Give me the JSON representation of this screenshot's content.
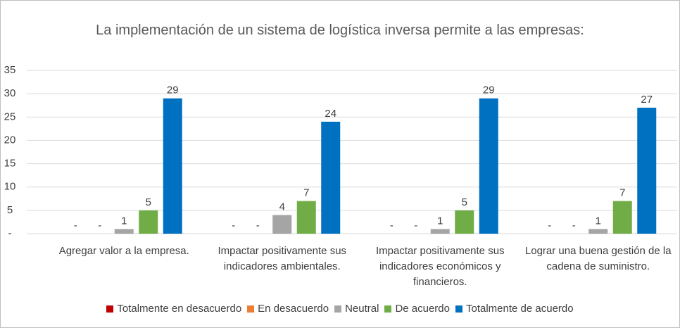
{
  "chart_data": {
    "type": "bar",
    "title": "La implementación de un sistema de logística inversa permite a las empresas:",
    "categories": [
      "Agregar valor a la empresa.",
      "Impactar positivamente sus indicadores ambientales.",
      "Impactar positivamente sus indicadores económicos y financieros.",
      "Lograr una buena gestión de la cadena de suministro."
    ],
    "series": [
      {
        "name": "Totalmente en desacuerdo",
        "color": "#c00000",
        "values": [
          0,
          0,
          0,
          0
        ],
        "value_labels": [
          "-",
          "-",
          "-",
          "-"
        ]
      },
      {
        "name": "En desacuerdo",
        "color": "#ed7d31",
        "values": [
          0,
          0,
          0,
          0
        ],
        "value_labels": [
          "-",
          "-",
          "-",
          "-"
        ]
      },
      {
        "name": "Neutral",
        "color": "#a5a5a5",
        "values": [
          1,
          4,
          1,
          1
        ]
      },
      {
        "name": "De acuerdo",
        "color": "#70ad47",
        "values": [
          5,
          7,
          5,
          7
        ]
      },
      {
        "name": "Totalmente de acuerdo",
        "color": "#0070c0",
        "values": [
          29,
          24,
          29,
          27
        ]
      }
    ],
    "ylim": [
      0,
      35
    ],
    "yticks": [
      {
        "value": 0,
        "label": "-"
      },
      5,
      10,
      15,
      20,
      25,
      30,
      35
    ],
    "grid": true,
    "legend": "bottom"
  }
}
